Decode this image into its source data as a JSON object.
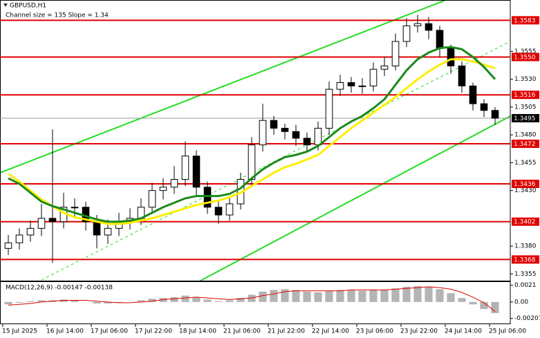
{
  "chart_data": [
    {
      "type": "candlestick",
      "title": "GBPUSD,H1",
      "subtitle": "Channel size = 135 Slope = 1.34",
      "x": [
        0,
        4,
        8,
        12,
        16,
        20,
        24,
        28,
        32,
        36,
        40,
        44,
        48,
        52,
        56,
        60,
        64,
        68,
        72,
        76,
        80,
        84,
        88,
        92,
        96,
        100,
        104,
        108,
        112,
        116,
        120,
        124,
        128,
        132,
        136,
        140,
        144,
        148,
        152,
        156,
        160,
        164,
        168,
        172,
        176
      ],
      "open": [
        1.3378,
        1.3383,
        1.339,
        1.3396,
        1.3405,
        1.3402,
        1.3415,
        1.3415,
        1.3402,
        1.339,
        1.3396,
        1.3402,
        1.3405,
        1.3415,
        1.343,
        1.3433,
        1.344,
        1.3461,
        1.3433,
        1.3415,
        1.3408,
        1.3418,
        1.344,
        1.3471,
        1.3493,
        1.3486,
        1.3483,
        1.3477,
        1.3471,
        1.3486,
        1.3521,
        1.3527,
        1.3524,
        1.3524,
        1.3539,
        1.3542,
        1.3564,
        1.3578,
        1.358,
        1.3574,
        1.3558,
        1.3542,
        1.3524,
        1.3508,
        1.3502
      ],
      "high": [
        1.339,
        1.3396,
        1.3403,
        1.3418,
        1.3485,
        1.3428,
        1.3423,
        1.342,
        1.3408,
        1.3404,
        1.341,
        1.3414,
        1.3423,
        1.3437,
        1.3441,
        1.3452,
        1.3474,
        1.3466,
        1.3438,
        1.342,
        1.3425,
        1.3446,
        1.3478,
        1.3508,
        1.3497,
        1.349,
        1.3489,
        1.3482,
        1.3492,
        1.3528,
        1.3534,
        1.3532,
        1.3531,
        1.3545,
        1.355,
        1.3571,
        1.3585,
        1.3588,
        1.3586,
        1.3578,
        1.3561,
        1.3546,
        1.3527,
        1.3512,
        1.3505
      ],
      "low": [
        1.3372,
        1.3377,
        1.3384,
        1.3389,
        1.3365,
        1.3396,
        1.3406,
        1.3394,
        1.3378,
        1.3382,
        1.3389,
        1.3395,
        1.3399,
        1.3409,
        1.3422,
        1.3427,
        1.3434,
        1.3425,
        1.3409,
        1.34,
        1.3403,
        1.3413,
        1.3435,
        1.3465,
        1.348,
        1.3476,
        1.347,
        1.3464,
        1.3466,
        1.348,
        1.3515,
        1.3518,
        1.3517,
        1.3519,
        1.3533,
        1.3538,
        1.3559,
        1.3572,
        1.3566,
        1.355,
        1.3535,
        1.3518,
        1.3502,
        1.3496,
        1.3489
      ],
      "close": [
        1.3383,
        1.339,
        1.3396,
        1.3405,
        1.3402,
        1.3415,
        1.3415,
        1.3402,
        1.339,
        1.3396,
        1.3402,
        1.3405,
        1.3415,
        1.343,
        1.3433,
        1.344,
        1.3461,
        1.3433,
        1.3415,
        1.3408,
        1.3418,
        1.344,
        1.3471,
        1.3493,
        1.3486,
        1.3483,
        1.3477,
        1.3471,
        1.3486,
        1.3521,
        1.3527,
        1.3524,
        1.3524,
        1.3539,
        1.3542,
        1.3564,
        1.3578,
        1.358,
        1.3574,
        1.3558,
        1.3542,
        1.3524,
        1.3508,
        1.3502,
        1.3495
      ],
      "series": [
        {
          "color": "#ffee00",
          "values": [
            1.3445,
            1.3438,
            1.343,
            1.3422,
            1.3416,
            1.341,
            1.3406,
            1.3404,
            1.3402,
            1.34,
            1.34,
            1.3401,
            1.3403,
            1.3405,
            1.3408,
            1.3411,
            1.3414,
            1.3417,
            1.3419,
            1.3421,
            1.3424,
            1.3428,
            1.3434,
            1.344,
            1.3446,
            1.3451,
            1.3454,
            1.3458,
            1.3462,
            1.347,
            1.3478,
            1.3486,
            1.3493,
            1.35,
            1.3507,
            1.3514,
            1.3522,
            1.353,
            1.3537,
            1.3543,
            1.3548,
            1.3548,
            1.3546,
            1.3543,
            1.354
          ]
        },
        {
          "color": "#1a8a1a",
          "values": [
            1.3441,
            1.3436,
            1.3428,
            1.342,
            1.3416,
            1.3413,
            1.341,
            1.3407,
            1.3404,
            1.3402,
            1.3402,
            1.3403,
            1.3405,
            1.341,
            1.3415,
            1.3419,
            1.3423,
            1.3425,
            1.3425,
            1.3425,
            1.3427,
            1.3432,
            1.3441,
            1.3449,
            1.3455,
            1.346,
            1.3462,
            1.3465,
            1.347,
            1.3478,
            1.3486,
            1.3492,
            1.3497,
            1.3504,
            1.3512,
            1.3525,
            1.3538,
            1.3548,
            1.3554,
            1.3558,
            1.3559,
            1.3557,
            1.355,
            1.3541,
            1.353
          ]
        }
      ],
      "levels": [
        1.3583,
        {
          "value": 1.355,
          "label": "1.3550"
        },
        1.3516,
        1.3472,
        1.3436,
        1.3402,
        1.3368
      ],
      "level_color": "#e00000",
      "current_price": 1.3495,
      "xlim": [
        -1,
        183.5
      ],
      "ylim": [
        1.3349,
        1.36
      ],
      "yticks": [
        1.3555,
        {
          "value": 1.353,
          "label": "1.3530"
        },
        1.3505,
        {
          "value": 1.348,
          "label": "1.3480"
        },
        1.3455,
        {
          "value": 1.343,
          "label": "1.3430"
        },
        {
          "value": 1.338,
          "label": "1.3380"
        },
        1.3355
      ],
      "xticks": [
        {
          "value": 0,
          "label": "15 Jul 2025"
        },
        {
          "value": 16,
          "label": "16 Jul 14:00"
        },
        {
          "value": 32,
          "label": "17 Jul 06:00"
        },
        {
          "value": 48,
          "label": "17 Jul 22:00"
        },
        {
          "value": 64,
          "label": "18 Jul 14:00"
        },
        {
          "value": 80,
          "label": "21 Jul 06:00"
        },
        {
          "value": 96,
          "label": "21 Jul 22:00"
        },
        {
          "value": 112,
          "label": "22 Jul 14:00"
        },
        {
          "value": 128,
          "label": "23 Jul 06:00"
        },
        {
          "value": 144,
          "label": "23 Jul 22:00"
        },
        {
          "value": 160,
          "label": "24 Jul 14:00"
        },
        {
          "value": 176,
          "label": "25 Jul 06:00"
        }
      ]
    },
    {
      "type": "macd",
      "title": "MACD(12,26,9) -0.00147 -0.00138",
      "values": [
        -0.0003,
        -0.0001,
        0.0001,
        0.0002,
        0.0002,
        0.0003,
        0.0002,
        0,
        -0.0002,
        -0.0002,
        -0.0001,
        0,
        0.0002,
        0.0004,
        0.0005,
        0.0006,
        0.0008,
        0.0006,
        0.0003,
        0.0001,
        0.0002,
        0.0005,
        0.0009,
        0.0013,
        0.0015,
        0.0016,
        0.0015,
        0.0013,
        0.0012,
        0.0014,
        0.0015,
        0.0015,
        0.0014,
        0.0015,
        0.0015,
        0.0017,
        0.0019,
        0.002,
        0.0019,
        0.0016,
        0.0011,
        0.0005,
        -0.0003,
        -0.0009,
        -0.0014
      ],
      "color": "#b4b4b4",
      "signal": {
        "color": "#e00000",
        "values": [
          -0.0004,
          -0.0003,
          -0.0002,
          0,
          0.0001,
          0.0002,
          0.0002,
          0.0002,
          0.0001,
          0,
          -0.0001,
          -0.0001,
          0,
          0.0001,
          0.0003,
          0.0004,
          0.0005,
          0.0006,
          0.0005,
          0.0004,
          0.0003,
          0.0004,
          0.0005,
          0.0008,
          0.001,
          0.0013,
          0.0014,
          0.0014,
          0.0014,
          0.0014,
          0.0014,
          0.0015,
          0.0015,
          0.0015,
          0.0015,
          0.0016,
          0.0017,
          0.0018,
          0.0019,
          0.0018,
          0.0016,
          0.0012,
          0.0006,
          -0.0001,
          -0.0012
        ]
      },
      "ylim": [
        -0.0027,
        0.0025
      ],
      "yticks": [
        0.0021,
        {
          "value": 0,
          "label": "0.00"
        },
        -0.00207
      ]
    }
  ]
}
